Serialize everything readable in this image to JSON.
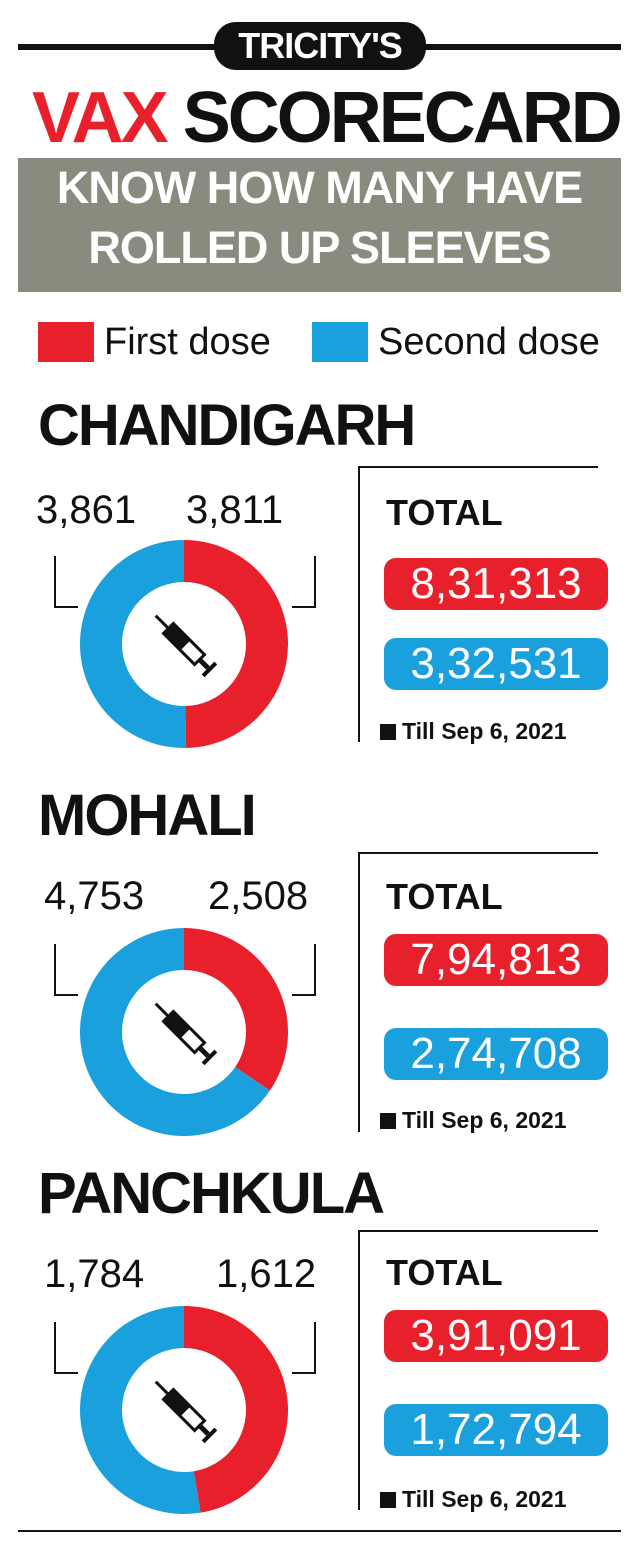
{
  "kicker": "TRICITY'S",
  "headline": {
    "part1": "VAX",
    "part2": "SCORECARD"
  },
  "subheadline": {
    "line1": "KNOW HOW MANY HAVE",
    "line2": "ROLLED UP SLEEVES"
  },
  "colors": {
    "first": "#e8202b",
    "second": "#1ba0de",
    "subbox": "#8b8a7f",
    "ink": "#111111"
  },
  "icons": {
    "donut_center": "syringe-icon"
  },
  "chart_data": [
    {
      "type": "pie",
      "title": "CHANDIGARH",
      "legend": [
        "First dose",
        "Second dose"
      ],
      "series": [
        {
          "name": "First dose",
          "value": 3811,
          "label": "3,811"
        },
        {
          "name": "Second dose",
          "value": 3861,
          "label": "3,861"
        }
      ],
      "total_label": "TOTAL",
      "totals": {
        "first": "8,31,313",
        "second": "3,32,531"
      },
      "note": "Till Sep 6, 2021"
    },
    {
      "type": "pie",
      "title": "MOHALI",
      "legend": [
        "First dose",
        "Second dose"
      ],
      "series": [
        {
          "name": "First dose",
          "value": 2508,
          "label": "2,508"
        },
        {
          "name": "Second dose",
          "value": 4753,
          "label": "4,753"
        }
      ],
      "total_label": "TOTAL",
      "totals": {
        "first": "7,94,813",
        "second": "2,74,708"
      },
      "note": "Till Sep 6, 2021"
    },
    {
      "type": "pie",
      "title": "PANCHKULA",
      "legend": [
        "First dose",
        "Second dose"
      ],
      "series": [
        {
          "name": "First dose",
          "value": 1612,
          "label": "1,612"
        },
        {
          "name": "Second dose",
          "value": 1784,
          "label": "1,784"
        }
      ],
      "total_label": "TOTAL",
      "totals": {
        "first": "3,91,091",
        "second": "1,72,794"
      },
      "note": "Till Sep 6, 2021"
    }
  ]
}
